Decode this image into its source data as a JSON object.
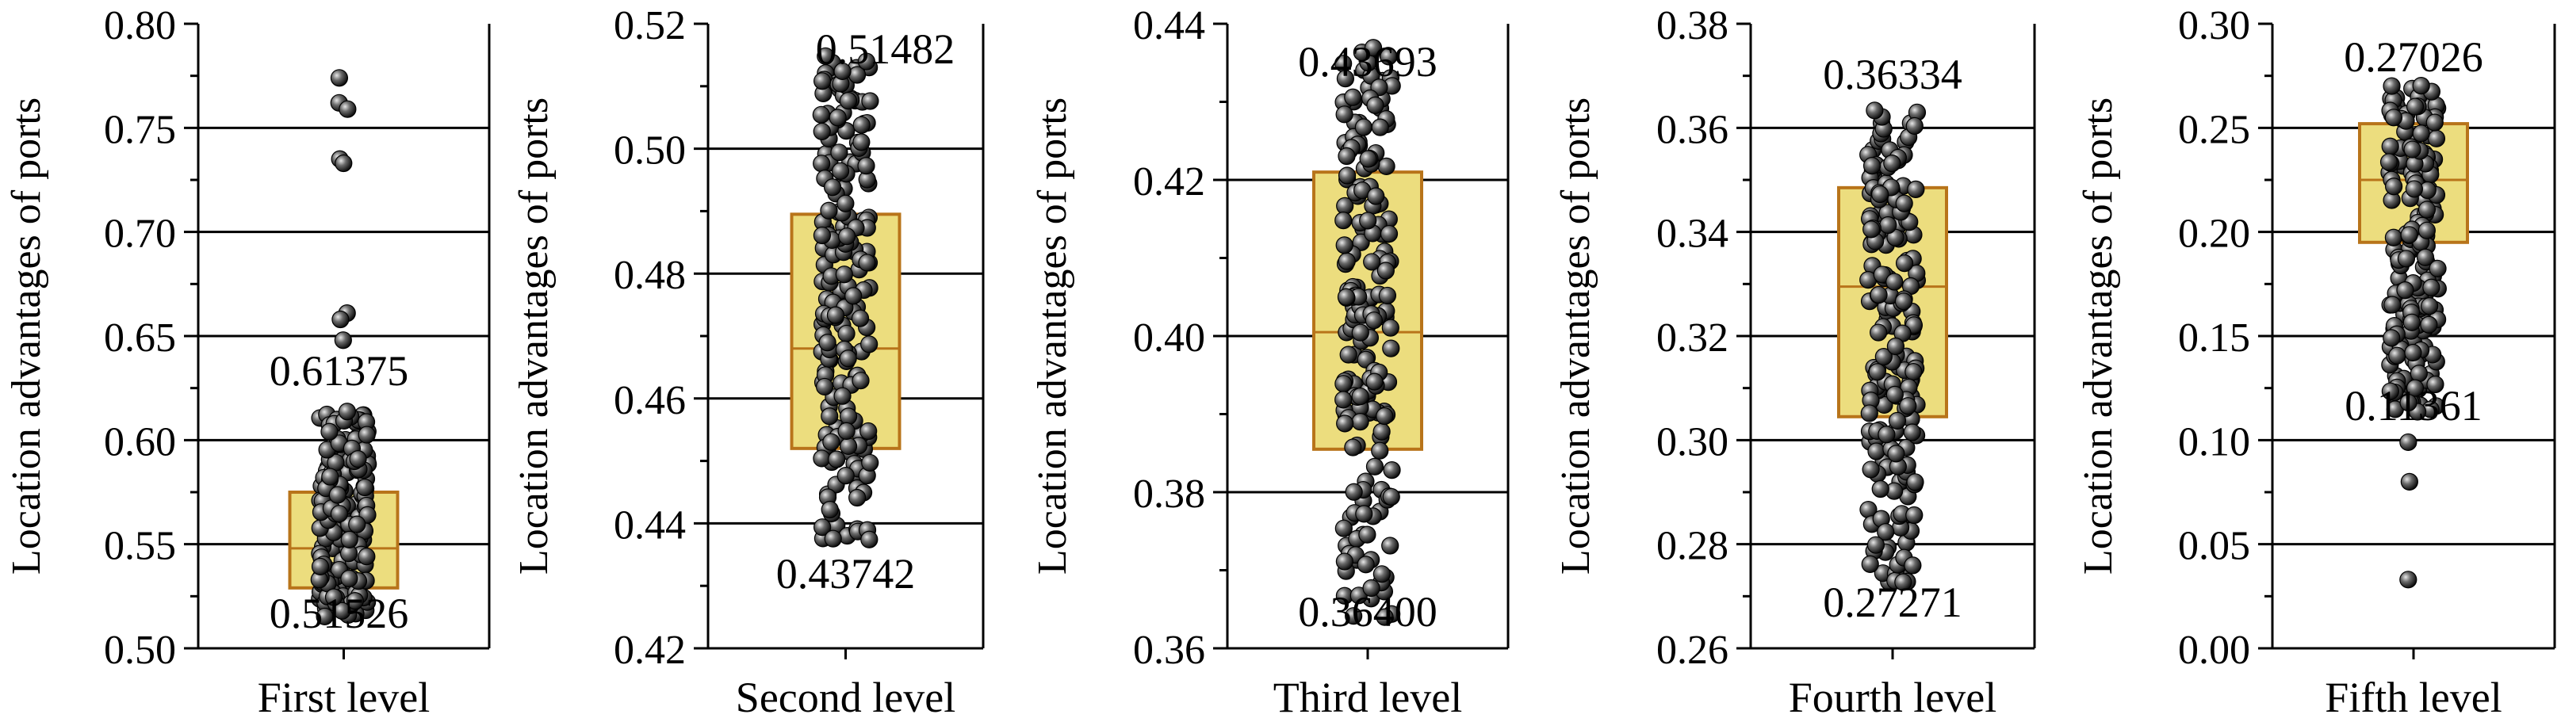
{
  "colors": {
    "box_fill": "#ECDD7E",
    "box_stroke": "#B8741A",
    "point_fill": "#3a3a3a",
    "gridline": "#000000"
  },
  "chart_data": [
    {
      "type": "box+scatter",
      "xlabel": "First level",
      "ylabel": "Location advantages of ports",
      "ylim": [
        0.5,
        0.8
      ],
      "yticks": [
        "0.50",
        "0.55",
        "0.60",
        "0.65",
        "0.70",
        "0.75",
        "0.80"
      ],
      "grid": true,
      "box": {
        "q1": 0.529,
        "median": 0.548,
        "q3": 0.575
      },
      "max_label": "0.61375",
      "min_label": "0.51526",
      "max_value": 0.61375,
      "min_value": 0.51526,
      "outliers": [
        0.774,
        0.762,
        0.759,
        0.735,
        0.733,
        0.661,
        0.658,
        0.648
      ]
    },
    {
      "type": "box+scatter",
      "xlabel": "Second level",
      "ylabel": "Location advantages of ports",
      "ylim": [
        0.42,
        0.52
      ],
      "yticks": [
        "0.42",
        "0.44",
        "0.46",
        "0.48",
        "0.50",
        "0.52"
      ],
      "grid": true,
      "box": {
        "q1": 0.452,
        "median": 0.468,
        "q3": 0.4895
      },
      "max_label": "0.51482",
      "min_label": "0.43742",
      "max_value": 0.51482,
      "min_value": 0.43742,
      "outliers": []
    },
    {
      "type": "box+scatter",
      "xlabel": "Third level",
      "ylabel": "Location advantages of ports",
      "ylim": [
        0.36,
        0.44
      ],
      "yticks": [
        "0.36",
        "0.38",
        "0.40",
        "0.42",
        "0.44"
      ],
      "grid": true,
      "box": {
        "q1": 0.3855,
        "median": 0.4005,
        "q3": 0.421
      },
      "max_label": "0.43693",
      "min_label": "0.36400",
      "max_value": 0.43693,
      "min_value": 0.364,
      "outliers": []
    },
    {
      "type": "box+scatter",
      "xlabel": "Fourth level",
      "ylabel": "Location advantages of ports",
      "ylim": [
        0.26,
        0.38
      ],
      "yticks": [
        "0.26",
        "0.28",
        "0.30",
        "0.32",
        "0.34",
        "0.36",
        "0.38"
      ],
      "grid": true,
      "box": {
        "q1": 0.3045,
        "median": 0.3295,
        "q3": 0.3485
      },
      "max_label": "0.36334",
      "min_label": "0.27271",
      "max_value": 0.36334,
      "min_value": 0.27271,
      "outliers": []
    },
    {
      "type": "box+scatter",
      "xlabel": "Fifth level",
      "ylabel": "Location advantages of ports",
      "ylim": [
        0.0,
        0.3
      ],
      "yticks": [
        "0.00",
        "0.05",
        "0.10",
        "0.15",
        "0.20",
        "0.25",
        "0.30"
      ],
      "grid": true,
      "box": {
        "q1": 0.195,
        "median": 0.225,
        "q3": 0.252
      },
      "max_label": "0.27026",
      "min_label": "0.11361",
      "max_value": 0.27026,
      "min_value": 0.11361,
      "outliers": [
        0.142,
        0.132,
        0.125,
        0.118,
        0.099,
        0.08,
        0.033
      ]
    }
  ]
}
